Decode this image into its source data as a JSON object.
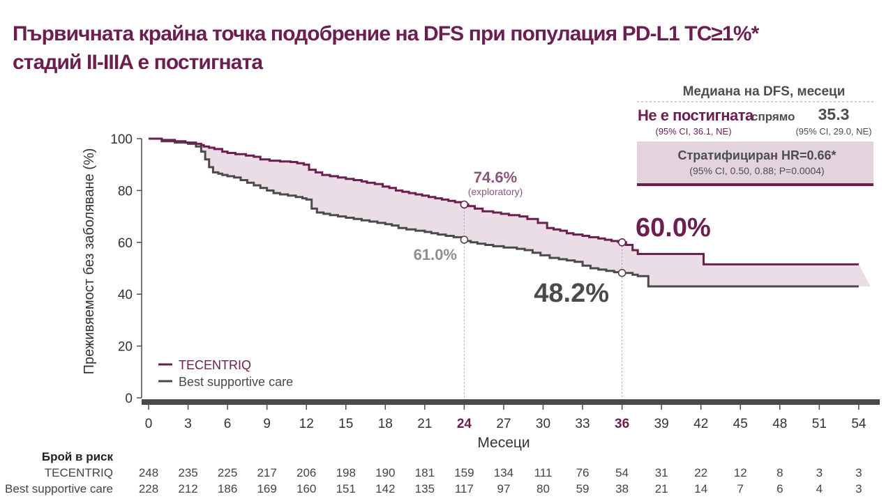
{
  "title": {
    "line1": "Първичната крайна точка подобрение на DFS при популация PD-L1 TC≥1%*",
    "line2": "стадий II-IIIA е постигната"
  },
  "median_box": {
    "heading": "Медиана на DFS, месеци",
    "tecentriq_value": "Не е постигната",
    "tecentriq_ci": "(95% CI, 36.1, NE)",
    "versus": "спрямо",
    "bsc_value": "35.3",
    "bsc_ci": "(95% CI, 29.0, NE)",
    "hr": "Стратифициран HR=0.66*",
    "hr_ci": "(95% CI, 0.50, 0.88; P=0.0004)"
  },
  "colors": {
    "tecentriq": "#6b1e4f",
    "bsc": "#4a4a4a",
    "fill": "#eadde5",
    "box_fill": "#e2d3dc",
    "landmark_tecentriq": "#8a5677",
    "landmark_bsc": "#8f8f8f"
  },
  "chart_data": {
    "type": "line",
    "xlabel": "Месеци",
    "ylabel": "Преживяемост без заболяване (%)",
    "xticks": [
      0,
      3,
      6,
      9,
      12,
      15,
      18,
      21,
      24,
      27,
      30,
      33,
      36,
      39,
      42,
      45,
      48,
      51,
      54
    ],
    "highlight_ticks": [
      24,
      36
    ],
    "yticks": [
      0,
      20,
      40,
      60,
      80,
      100
    ],
    "xlim": [
      0,
      55
    ],
    "ylim": [
      0,
      100
    ],
    "grid": false,
    "legend_position": "bottom-left",
    "series": [
      {
        "name": "TECENTRIQ",
        "x": [
          0,
          1,
          2,
          2.8,
          3.6,
          4,
          4.2,
          4.6,
          5,
          5.6,
          6,
          6.6,
          7.4,
          8,
          8.5,
          9.2,
          10,
          10.8,
          11.3,
          11.8,
          12.2,
          12.7,
          13.2,
          13.8,
          14.4,
          15,
          15.6,
          16.2,
          16.6,
          17.2,
          17.8,
          18.3,
          18.8,
          19.3,
          19.8,
          20.3,
          20.8,
          21.3,
          21.8,
          22.3,
          22.8,
          23.3,
          23.8,
          24,
          24.3,
          24.8,
          25.4,
          26.2,
          26.8,
          27.4,
          28.2,
          28.8,
          29.6,
          30.3,
          30.8,
          31.3,
          31.8,
          32.3,
          33,
          33.5,
          34.2,
          34.7,
          35.2,
          35.7,
          36,
          36.3,
          36.8,
          37.2,
          38.5,
          40,
          42.2,
          44,
          48,
          54
        ],
        "y": [
          100,
          99.5,
          99,
          98.5,
          98,
          97.5,
          97,
          96.5,
          96,
          95,
          94.5,
          94,
          93.5,
          93,
          92,
          91.5,
          91.2,
          91,
          90.5,
          90,
          88,
          87,
          86,
          85.5,
          85,
          84.5,
          84,
          83.5,
          83,
          82.5,
          81.5,
          81,
          80,
          79.5,
          79,
          78.5,
          78,
          77.5,
          77,
          76.5,
          76,
          75.5,
          75,
          74.6,
          74,
          73,
          72,
          71.5,
          71,
          70.5,
          70,
          69,
          67.5,
          65.5,
          65,
          64.5,
          63.5,
          63,
          62.5,
          62,
          61.5,
          61,
          60.5,
          60.2,
          60,
          59,
          57,
          55.5,
          55.5,
          55.5,
          51.5,
          51.5,
          51.5,
          51.5
        ],
        "landmarks": [
          {
            "x": 24,
            "y": 74.6,
            "label": "74.6%",
            "note": "(exploratory)"
          },
          {
            "x": 36,
            "y": 60,
            "label": "60.0%"
          }
        ]
      },
      {
        "name": "Best supportive care",
        "x": [
          0,
          1,
          2,
          3,
          3.6,
          4,
          4.3,
          4.6,
          4.9,
          5.3,
          5.6,
          6,
          6.5,
          7,
          7.5,
          8,
          8.5,
          9,
          9.5,
          10,
          10.6,
          11.2,
          11.7,
          12,
          12.4,
          12.8,
          13.3,
          13.8,
          14.4,
          15,
          15.6,
          16.2,
          16.8,
          17.4,
          18,
          18.5,
          19,
          19.6,
          20.3,
          21,
          21.5,
          22,
          22.6,
          23.2,
          23.8,
          24,
          24.2,
          24.5,
          25,
          25.6,
          26.2,
          27,
          28,
          28.6,
          29.2,
          29.8,
          30.5,
          31.2,
          31.8,
          32.4,
          33,
          33.6,
          34.2,
          34.8,
          35.4,
          36,
          36.8,
          37.2,
          38,
          40,
          44,
          48,
          54
        ],
        "y": [
          100,
          99,
          98.5,
          98,
          97,
          95,
          92,
          89,
          87,
          86.5,
          86,
          85.5,
          85,
          84,
          83,
          82,
          81,
          80,
          79,
          78.5,
          78,
          77.5,
          77,
          76.5,
          73,
          71.5,
          71,
          70.5,
          70,
          69.5,
          69,
          68.5,
          68,
          67.5,
          67,
          66.5,
          65.5,
          65,
          64.5,
          64,
          63.5,
          63,
          62.5,
          62,
          61.5,
          61,
          60.5,
          60,
          59.5,
          59,
          58.5,
          58,
          57.5,
          57,
          56,
          55,
          54,
          53.5,
          53,
          52.5,
          51,
          50,
          49.5,
          49,
          48.5,
          48.2,
          47.5,
          47,
          43,
          43,
          43,
          43,
          43
        ],
        "landmarks": [
          {
            "x": 24,
            "y": 61,
            "label": "61.0%"
          },
          {
            "x": 36,
            "y": 48.2,
            "label": "48.2%"
          }
        ]
      }
    ],
    "at_risk": {
      "heading": "Брой в риск",
      "rows": [
        {
          "name": "TECENTRIQ",
          "values": [
            248,
            235,
            225,
            217,
            206,
            198,
            190,
            181,
            159,
            134,
            111,
            76,
            54,
            31,
            22,
            12,
            8,
            3,
            3
          ]
        },
        {
          "name": "Best supportive care",
          "values": [
            228,
            212,
            186,
            169,
            160,
            151,
            142,
            135,
            117,
            97,
            80,
            59,
            38,
            21,
            14,
            7,
            6,
            4,
            3
          ]
        }
      ]
    }
  }
}
